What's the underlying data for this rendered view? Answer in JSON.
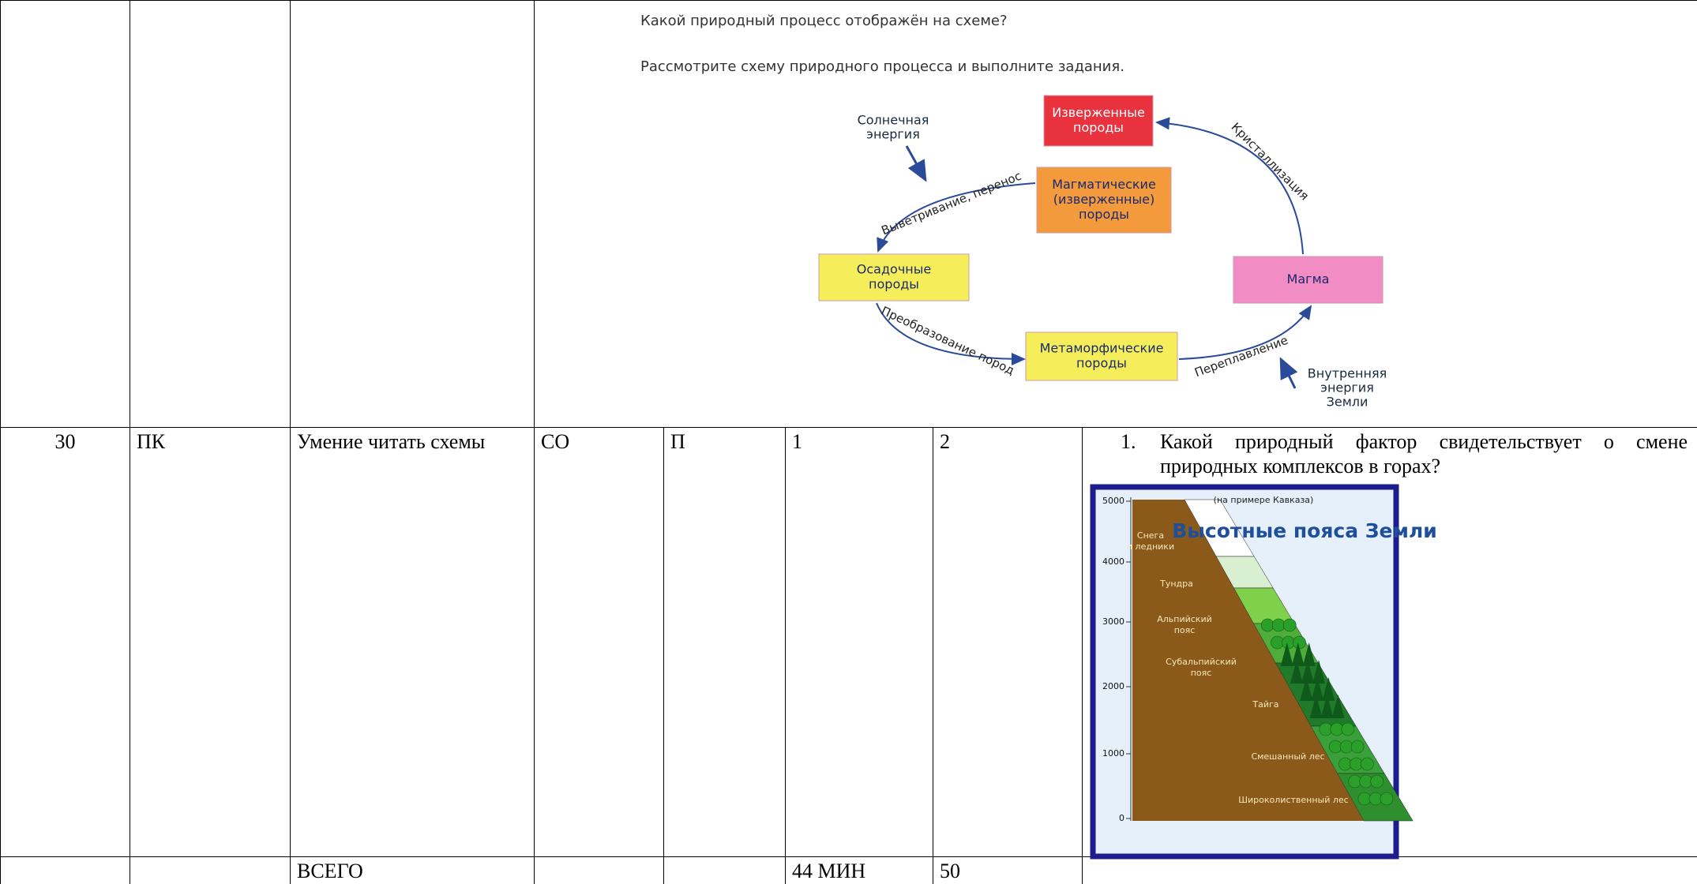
{
  "header_block": {
    "question": "Какой природный процесс отображён на схеме?",
    "instruction": "Рассмотрите схему природного процесса и выполните задания."
  },
  "rock_cycle": {
    "nodes": [
      {
        "lines": [
          "Изверженные",
          "породы"
        ]
      },
      {
        "lines": [
          "Магматические",
          "(изверженные)",
          "породы"
        ]
      },
      {
        "lines": [
          "Осадочные",
          "породы"
        ]
      },
      {
        "lines": [
          "Магма"
        ]
      },
      {
        "lines": [
          "Метаморфические",
          "породы"
        ]
      }
    ],
    "energy": [
      {
        "lines": [
          "Солнечная",
          "энергия"
        ]
      },
      {
        "lines": [
          "Внутренняя",
          "энергия",
          "Земли"
        ]
      }
    ],
    "processes": [
      "Кристаллизация",
      "Выветривание, перенос",
      "Преобразование пород",
      "Переплавление"
    ]
  },
  "rows": [
    {
      "number": 30,
      "code": "ПК",
      "skill": "Умение читать схемы",
      "level": "СО",
      "type": "П",
      "time": 1,
      "points": 2,
      "task": {
        "marker": "1.",
        "text": "Какой природный фактор свидетельствует о смене природных комплексов в горах?"
      }
    },
    {
      "label": "ВСЕГО",
      "time": "44 МИН",
      "points": 50
    }
  ],
  "altitude_figure": {
    "note": "(на примере Кавказа)",
    "title": "Высотные пояса Земли",
    "yticks": [
      5000,
      4000,
      3000,
      2000,
      1000,
      0
    ],
    "zones": [
      {
        "lines": [
          "Снега",
          "и ледники"
        ]
      },
      {
        "lines": [
          "Тундра"
        ]
      },
      {
        "lines": [
          "Альпийский",
          "пояс"
        ]
      },
      {
        "lines": [
          "Субальпийский",
          "пояс"
        ]
      },
      {
        "lines": [
          "Тайга"
        ]
      },
      {
        "lines": [
          "Смешанный лес"
        ]
      },
      {
        "lines": [
          "Широколиственный лес"
        ]
      }
    ]
  }
}
